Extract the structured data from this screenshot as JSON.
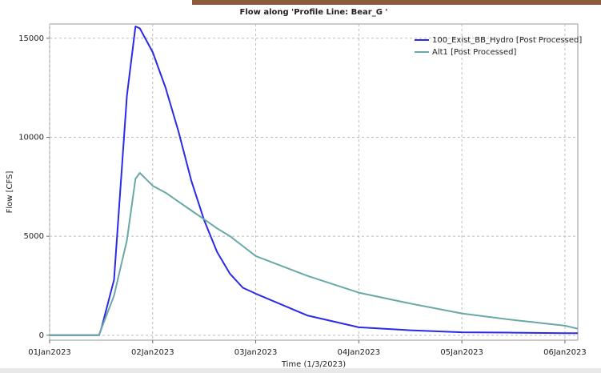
{
  "chart_data": {
    "type": "line",
    "title": "Flow along 'Profile Line: Bear_G '",
    "x_label": "Time (1/3/2023)",
    "y_label": "Flow [CFS]",
    "x": [
      "2023-01-01T00:00",
      "2023-01-01T03:00",
      "2023-01-01T06:00",
      "2023-01-01T09:00",
      "2023-01-01T11:30",
      "2023-01-01T12:00",
      "2023-01-01T15:00",
      "2023-01-01T18:00",
      "2023-01-01T20:00",
      "2023-01-01T21:00",
      "2023-01-02T00:00",
      "2023-01-02T03:00",
      "2023-01-02T06:00",
      "2023-01-02T09:00",
      "2023-01-02T12:00",
      "2023-01-02T15:00",
      "2023-01-02T18:00",
      "2023-01-02T21:00",
      "2023-01-03T00:00",
      "2023-01-03T12:00",
      "2023-01-04T00:00",
      "2023-01-04T12:00",
      "2023-01-05T00:00",
      "2023-01-05T12:00",
      "2023-01-06T00:00",
      "2023-01-06T03:00"
    ],
    "series": [
      {
        "name": "100_Exist_BB_Hydro [Post Processed]",
        "color": "#2a2ae8",
        "values": [
          0,
          0,
          0,
          0,
          0,
          300,
          2800,
          12100,
          15600,
          15500,
          14300,
          12500,
          10300,
          7800,
          5800,
          4200,
          3100,
          2400,
          2100,
          1000,
          400,
          250,
          150,
          130,
          100,
          100
        ]
      },
      {
        "name": "Alt1 [Post Processed]",
        "color": "#6aa8a8",
        "values": [
          0,
          0,
          0,
          0,
          0,
          300,
          2000,
          4800,
          7900,
          8200,
          7550,
          7200,
          6750,
          6300,
          5850,
          5400,
          5000,
          4500,
          4000,
          3000,
          2150,
          1600,
          1100,
          770,
          480,
          330
        ]
      }
    ],
    "xlim": [
      "2023-01-01T00:00",
      "2023-01-06T03:00"
    ],
    "xticks": [
      {
        "value": "2023-01-01T00:00",
        "label": "01Jan2023"
      },
      {
        "value": "2023-01-02T00:00",
        "label": "02Jan2023"
      },
      {
        "value": "2023-01-03T00:00",
        "label": "03Jan2023"
      },
      {
        "value": "2023-01-04T00:00",
        "label": "04Jan2023"
      },
      {
        "value": "2023-01-05T00:00",
        "label": "05Jan2023"
      },
      {
        "value": "2023-01-06T00:00",
        "label": "06Jan2023"
      }
    ],
    "ylim": [
      -250,
      15720
    ],
    "yticks": [
      0,
      5000,
      10000,
      15000
    ],
    "grid": true,
    "legend": "top-right"
  }
}
